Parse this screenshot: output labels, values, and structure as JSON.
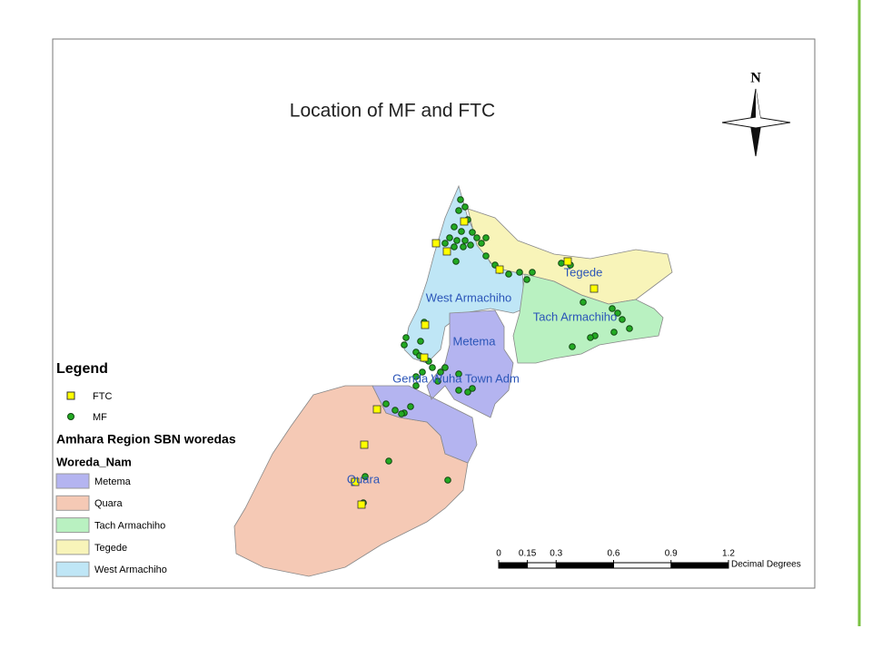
{
  "title": "Location of MF and FTC",
  "north": "N",
  "map_labels": [
    "Tegede",
    "West Armachiho",
    "Tach Armachiho",
    "Metema",
    "Genda Wuha Town Adm",
    "Quara"
  ],
  "legend": {
    "title": "Legend",
    "symbols": [
      {
        "label": "FTC",
        "color": "#ffff00"
      },
      {
        "label": "MF",
        "color": "#22aa22"
      }
    ],
    "layer_title": "Amhara Region SBN woredas",
    "field": "Woreda_Nam",
    "classes": [
      {
        "label": "Metema",
        "color": "#b4b4f0"
      },
      {
        "label": "Quara",
        "color": "#f5c9b5"
      },
      {
        "label": "Tach Armachiho",
        "color": "#b9f1c1"
      },
      {
        "label": "Tegede",
        "color": "#f8f4b9"
      },
      {
        "label": "West Armachiho",
        "color": "#bfe6f6"
      }
    ]
  },
  "scale_bar": {
    "ticks": [
      0,
      0.15,
      0.3,
      0.6,
      0.9,
      1.2
    ],
    "unit": "Decimal Degrees"
  }
}
